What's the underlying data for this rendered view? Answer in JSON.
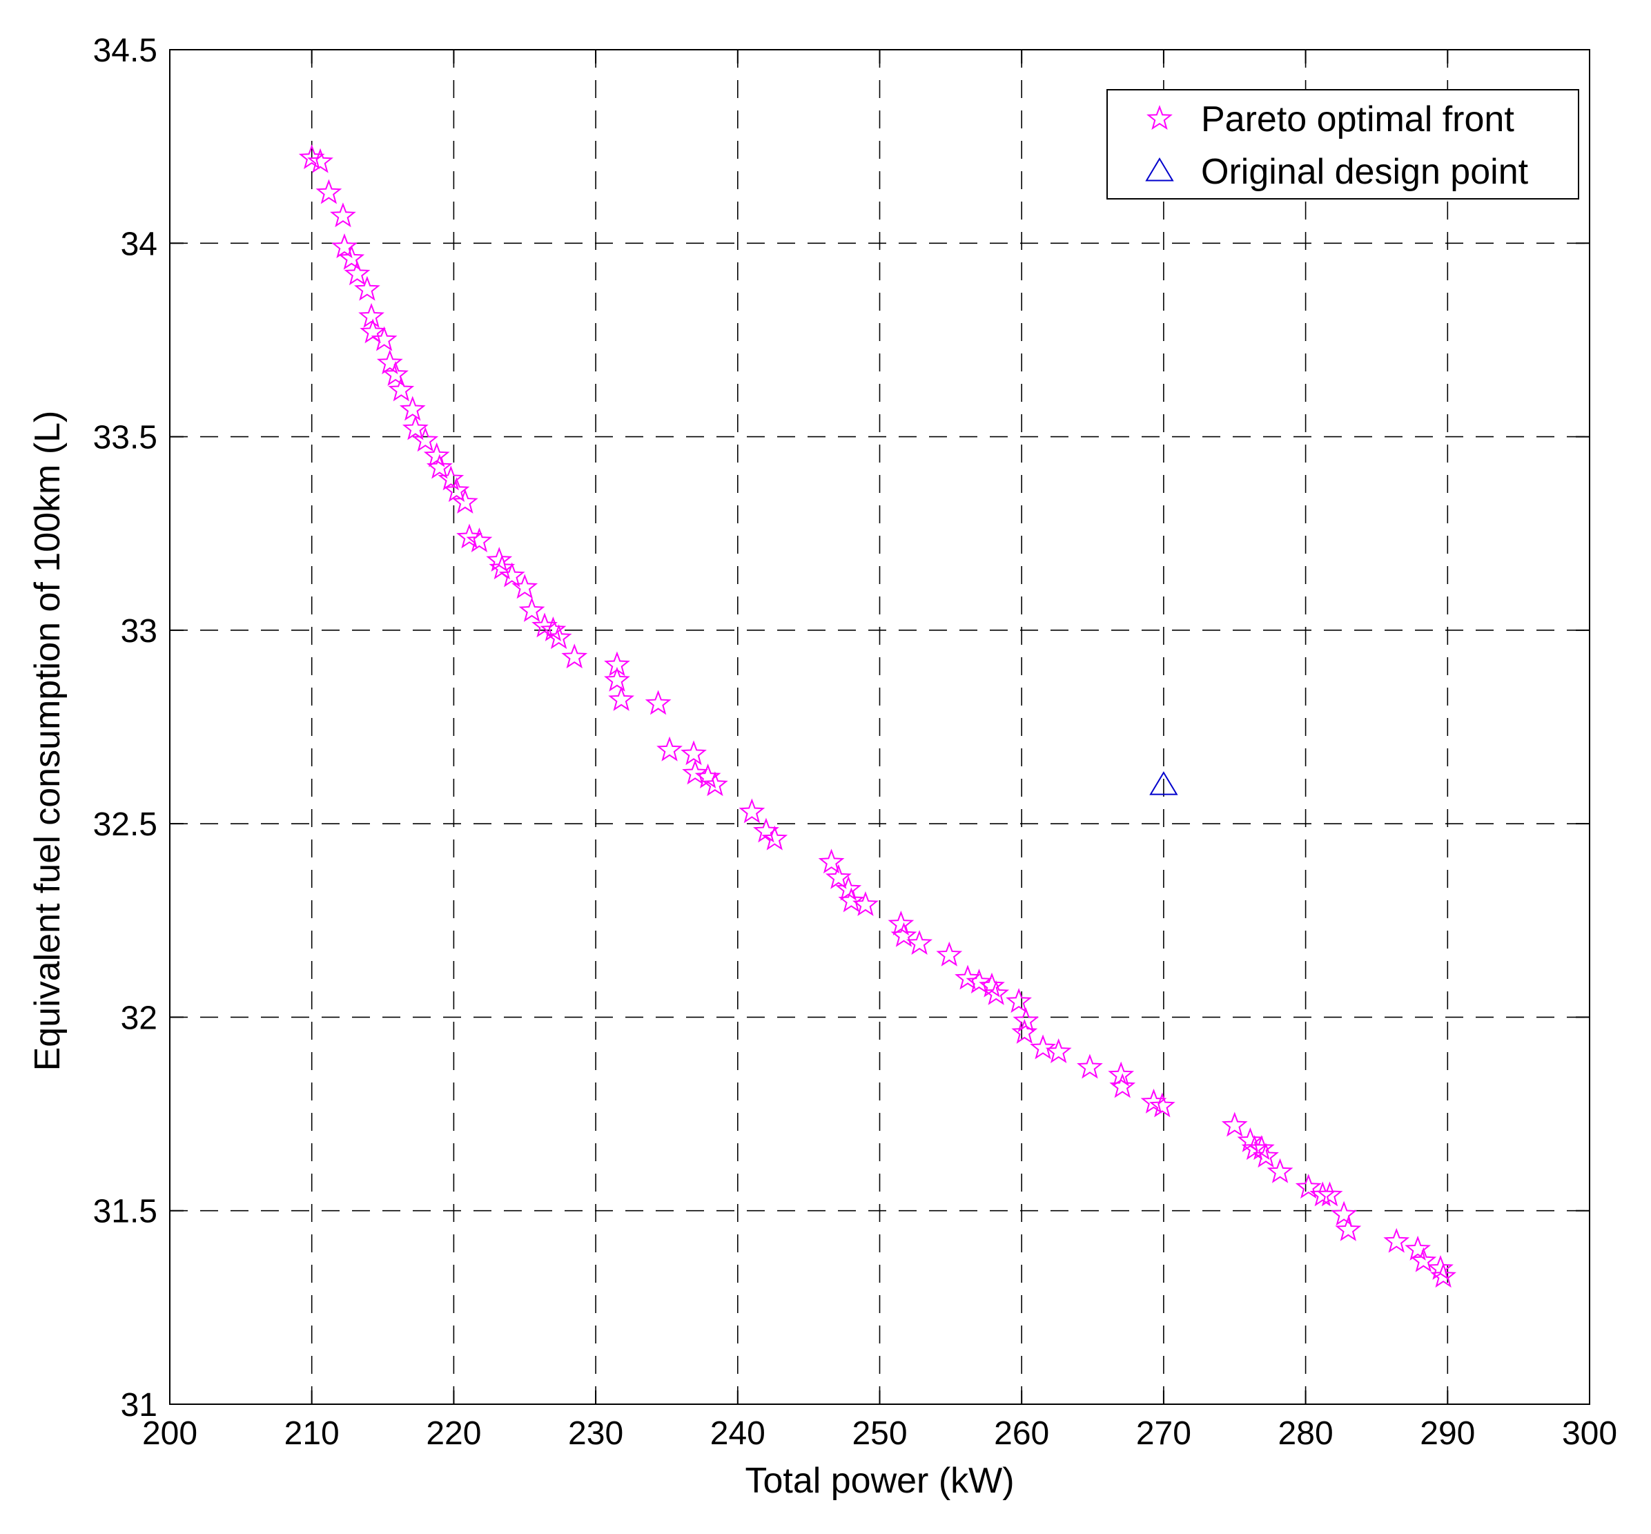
{
  "chart_data": {
    "type": "scatter",
    "title": "",
    "xlabel": "Total power (kW)",
    "ylabel": "Equivalent fuel consumption of 100km (L)",
    "xlim": [
      200,
      300
    ],
    "ylim": [
      31,
      34.5
    ],
    "xticks": [
      200,
      210,
      220,
      230,
      240,
      250,
      260,
      270,
      280,
      290,
      300
    ],
    "yticks": [
      31,
      31.5,
      32,
      32.5,
      33,
      33.5,
      34,
      34.5
    ],
    "xtick_labels": [
      "200",
      "210",
      "220",
      "230",
      "240",
      "250",
      "260",
      "270",
      "280",
      "290",
      "300"
    ],
    "ytick_labels": [
      "31",
      "31.5",
      "32",
      "32.5",
      "33",
      "33.5",
      "34",
      "34.5"
    ],
    "grid": true,
    "grid_style": "dashed",
    "legend_position": "top-right",
    "series": [
      {
        "name": "Pareto optimal front",
        "marker": "star",
        "color": "#ff00ff",
        "points": [
          [
            210.0,
            34.22
          ],
          [
            210.6,
            34.21
          ],
          [
            211.2,
            34.13
          ],
          [
            212.2,
            34.07
          ],
          [
            212.3,
            33.99
          ],
          [
            212.8,
            33.96
          ],
          [
            213.2,
            33.92
          ],
          [
            213.9,
            33.88
          ],
          [
            214.2,
            33.81
          ],
          [
            214.3,
            33.77
          ],
          [
            215.1,
            33.75
          ],
          [
            215.5,
            33.69
          ],
          [
            215.9,
            33.66
          ],
          [
            216.3,
            33.62
          ],
          [
            217.1,
            33.57
          ],
          [
            217.3,
            33.52
          ],
          [
            218.0,
            33.49
          ],
          [
            218.8,
            33.45
          ],
          [
            219.0,
            33.42
          ],
          [
            219.8,
            33.39
          ],
          [
            220.2,
            33.36
          ],
          [
            220.8,
            33.33
          ],
          [
            221.1,
            33.24
          ],
          [
            221.8,
            33.23
          ],
          [
            223.2,
            33.18
          ],
          [
            223.4,
            33.16
          ],
          [
            224.1,
            33.14
          ],
          [
            225.0,
            33.11
          ],
          [
            225.5,
            33.05
          ],
          [
            226.4,
            33.01
          ],
          [
            227.0,
            33.0
          ],
          [
            227.4,
            32.98
          ],
          [
            228.5,
            32.93
          ],
          [
            231.5,
            32.91
          ],
          [
            231.5,
            32.87
          ],
          [
            231.8,
            32.82
          ],
          [
            234.4,
            32.81
          ],
          [
            235.2,
            32.69
          ],
          [
            236.9,
            32.68
          ],
          [
            237.0,
            32.63
          ],
          [
            237.9,
            32.62
          ],
          [
            238.4,
            32.6
          ],
          [
            241.0,
            32.53
          ],
          [
            242.0,
            32.48
          ],
          [
            242.6,
            32.46
          ],
          [
            246.6,
            32.4
          ],
          [
            247.1,
            32.36
          ],
          [
            247.8,
            32.33
          ],
          [
            248.0,
            32.3
          ],
          [
            249.0,
            32.29
          ],
          [
            251.5,
            32.24
          ],
          [
            251.7,
            32.21
          ],
          [
            252.8,
            32.19
          ],
          [
            254.9,
            32.16
          ],
          [
            256.2,
            32.1
          ],
          [
            257.0,
            32.09
          ],
          [
            257.9,
            32.08
          ],
          [
            258.2,
            32.06
          ],
          [
            259.8,
            32.04
          ],
          [
            260.3,
            31.99
          ],
          [
            260.2,
            31.96
          ],
          [
            261.5,
            31.92
          ],
          [
            262.6,
            31.91
          ],
          [
            264.8,
            31.87
          ],
          [
            267.0,
            31.85
          ],
          [
            267.1,
            31.82
          ],
          [
            269.3,
            31.78
          ],
          [
            269.9,
            31.77
          ],
          [
            275.0,
            31.72
          ],
          [
            276.1,
            31.68
          ],
          [
            276.4,
            31.66
          ],
          [
            276.9,
            31.66
          ],
          [
            277.2,
            31.64
          ],
          [
            278.2,
            31.6
          ],
          [
            280.2,
            31.56
          ],
          [
            281.2,
            31.54
          ],
          [
            281.7,
            31.54
          ],
          [
            282.7,
            31.49
          ],
          [
            283.0,
            31.45
          ],
          [
            286.4,
            31.42
          ],
          [
            287.9,
            31.4
          ],
          [
            288.3,
            31.37
          ],
          [
            289.5,
            31.35
          ],
          [
            289.7,
            31.33
          ]
        ]
      },
      {
        "name": "Original design point",
        "marker": "triangle",
        "color": "#0000cc",
        "points": [
          [
            270.0,
            32.6
          ]
        ]
      }
    ]
  }
}
